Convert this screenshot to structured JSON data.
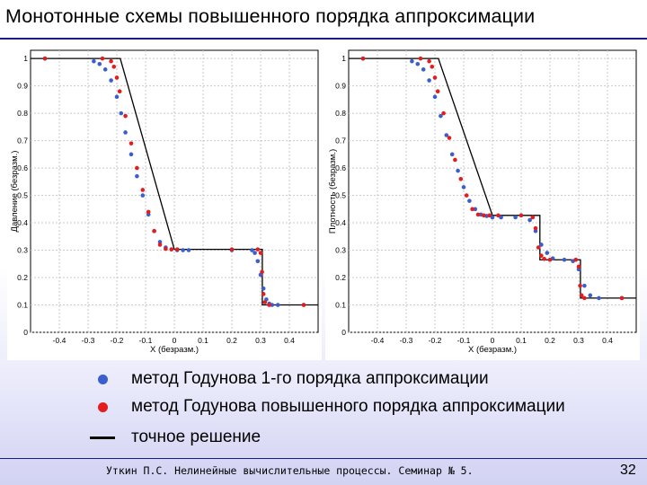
{
  "title": "Монотонные схемы повышенного порядка аппроксимации",
  "legend": [
    {
      "marker": "blue-dot",
      "color": "#3a5fcd",
      "label": "метод Годунова 1-го порядка аппроксимации"
    },
    {
      "marker": "red-dot",
      "color": "#e31d1d",
      "label": "метод Годунова повышенного порядка аппроксимации"
    },
    {
      "marker": "black-line",
      "color": "#000000",
      "label": "точное решение"
    }
  ],
  "footer": {
    "text": "Уткин П.С. Нелинейные вычислительные процессы. Семинар № 5.",
    "page": "32"
  },
  "chart_data": [
    {
      "type": "scatter",
      "title": "",
      "xlabel": "X (безразм.)",
      "ylabel": "Давление (безразм.)",
      "xlim": [
        -0.5,
        0.5
      ],
      "ylim": [
        0,
        1.03
      ],
      "xticks": [
        "-0.4",
        "-0.3",
        "-0.2",
        "-0.1",
        "0",
        "0.1",
        "0.2",
        "0.3",
        "0.4"
      ],
      "yticks": [
        "0",
        "0.1",
        "0.2",
        "0.3",
        "0.4",
        "0.5",
        "0.6",
        "0.7",
        "0.8",
        "0.9",
        "1"
      ],
      "grid": true,
      "exact": {
        "x": [
          -0.5,
          -0.195,
          -0.188,
          0.0,
          0.306,
          0.306,
          0.5
        ],
        "y": [
          1.0,
          1.0,
          1.0,
          0.303,
          0.303,
          0.1,
          0.1
        ]
      },
      "series": [
        {
          "color": "#3a5fcd",
          "x": [
            -0.45,
            -0.28,
            -0.26,
            -0.24,
            -0.22,
            -0.2,
            -0.185,
            -0.17,
            -0.15,
            -0.13,
            -0.11,
            -0.09,
            -0.07,
            -0.05,
            -0.03,
            -0.01,
            0.01,
            0.03,
            0.05,
            0.2,
            0.27,
            0.28,
            0.29,
            0.3,
            0.31,
            0.32,
            0.33,
            0.34,
            0.36,
            0.45
          ],
          "y": [
            1.0,
            0.99,
            0.98,
            0.96,
            0.92,
            0.86,
            0.8,
            0.73,
            0.65,
            0.57,
            0.5,
            0.43,
            0.37,
            0.33,
            0.31,
            0.303,
            0.3,
            0.3,
            0.3,
            0.3,
            0.3,
            0.29,
            0.26,
            0.21,
            0.16,
            0.12,
            0.105,
            0.1,
            0.1,
            0.1
          ]
        },
        {
          "color": "#e31d1d",
          "x": [
            -0.45,
            -0.25,
            -0.22,
            -0.21,
            -0.2,
            -0.19,
            -0.17,
            -0.15,
            -0.13,
            -0.11,
            -0.09,
            -0.07,
            -0.05,
            -0.03,
            -0.01,
            0.01,
            0.2,
            0.29,
            0.3,
            0.305,
            0.31,
            0.315,
            0.33,
            0.45
          ],
          "y": [
            1.0,
            1.0,
            0.99,
            0.97,
            0.93,
            0.88,
            0.79,
            0.69,
            0.6,
            0.52,
            0.44,
            0.37,
            0.32,
            0.305,
            0.303,
            0.303,
            0.303,
            0.303,
            0.29,
            0.22,
            0.14,
            0.11,
            0.1,
            0.1
          ]
        }
      ]
    },
    {
      "type": "scatter",
      "title": "",
      "xlabel": "X (безразм.)",
      "ylabel": "Плотность (безразм.)",
      "xlim": [
        -0.5,
        0.5
      ],
      "ylim": [
        0,
        1.03
      ],
      "xticks": [
        "-0.4",
        "-0.3",
        "-0.2",
        "-0.1",
        "0",
        "0.1",
        "0.2",
        "0.3",
        "0.4"
      ],
      "yticks": [
        "0",
        "0.1",
        "0.2",
        "0.3",
        "0.4",
        "0.5",
        "0.6",
        "0.7",
        "0.8",
        "0.9",
        "1"
      ],
      "grid": true,
      "exact": {
        "x": [
          -0.5,
          -0.195,
          -0.188,
          0.0,
          0.165,
          0.165,
          0.306,
          0.306,
          0.5
        ],
        "y": [
          1.0,
          1.0,
          1.0,
          0.427,
          0.427,
          0.265,
          0.265,
          0.125,
          0.125
        ]
      },
      "series": [
        {
          "color": "#3a5fcd",
          "x": [
            -0.45,
            -0.28,
            -0.26,
            -0.24,
            -0.22,
            -0.2,
            -0.18,
            -0.16,
            -0.14,
            -0.12,
            -0.1,
            -0.08,
            -0.06,
            -0.04,
            -0.02,
            0.0,
            0.03,
            0.08,
            0.13,
            0.15,
            0.17,
            0.19,
            0.21,
            0.25,
            0.28,
            0.3,
            0.32,
            0.34,
            0.37,
            0.45
          ],
          "y": [
            1.0,
            0.99,
            0.98,
            0.96,
            0.92,
            0.86,
            0.79,
            0.72,
            0.65,
            0.59,
            0.53,
            0.48,
            0.45,
            0.43,
            0.425,
            0.42,
            0.42,
            0.42,
            0.41,
            0.37,
            0.32,
            0.29,
            0.27,
            0.265,
            0.26,
            0.23,
            0.17,
            0.135,
            0.125,
            0.125
          ]
        },
        {
          "color": "#e31d1d",
          "x": [
            -0.45,
            -0.25,
            -0.22,
            -0.21,
            -0.2,
            -0.19,
            -0.17,
            -0.15,
            -0.13,
            -0.11,
            -0.09,
            -0.07,
            -0.05,
            -0.03,
            -0.01,
            0.02,
            0.1,
            0.14,
            0.15,
            0.16,
            0.17,
            0.18,
            0.2,
            0.29,
            0.3,
            0.305,
            0.31,
            0.32,
            0.45
          ],
          "y": [
            1.0,
            1.0,
            0.99,
            0.97,
            0.93,
            0.88,
            0.8,
            0.71,
            0.63,
            0.56,
            0.5,
            0.45,
            0.43,
            0.427,
            0.427,
            0.427,
            0.427,
            0.42,
            0.38,
            0.31,
            0.28,
            0.268,
            0.265,
            0.265,
            0.24,
            0.17,
            0.135,
            0.125,
            0.125
          ]
        }
      ]
    }
  ]
}
